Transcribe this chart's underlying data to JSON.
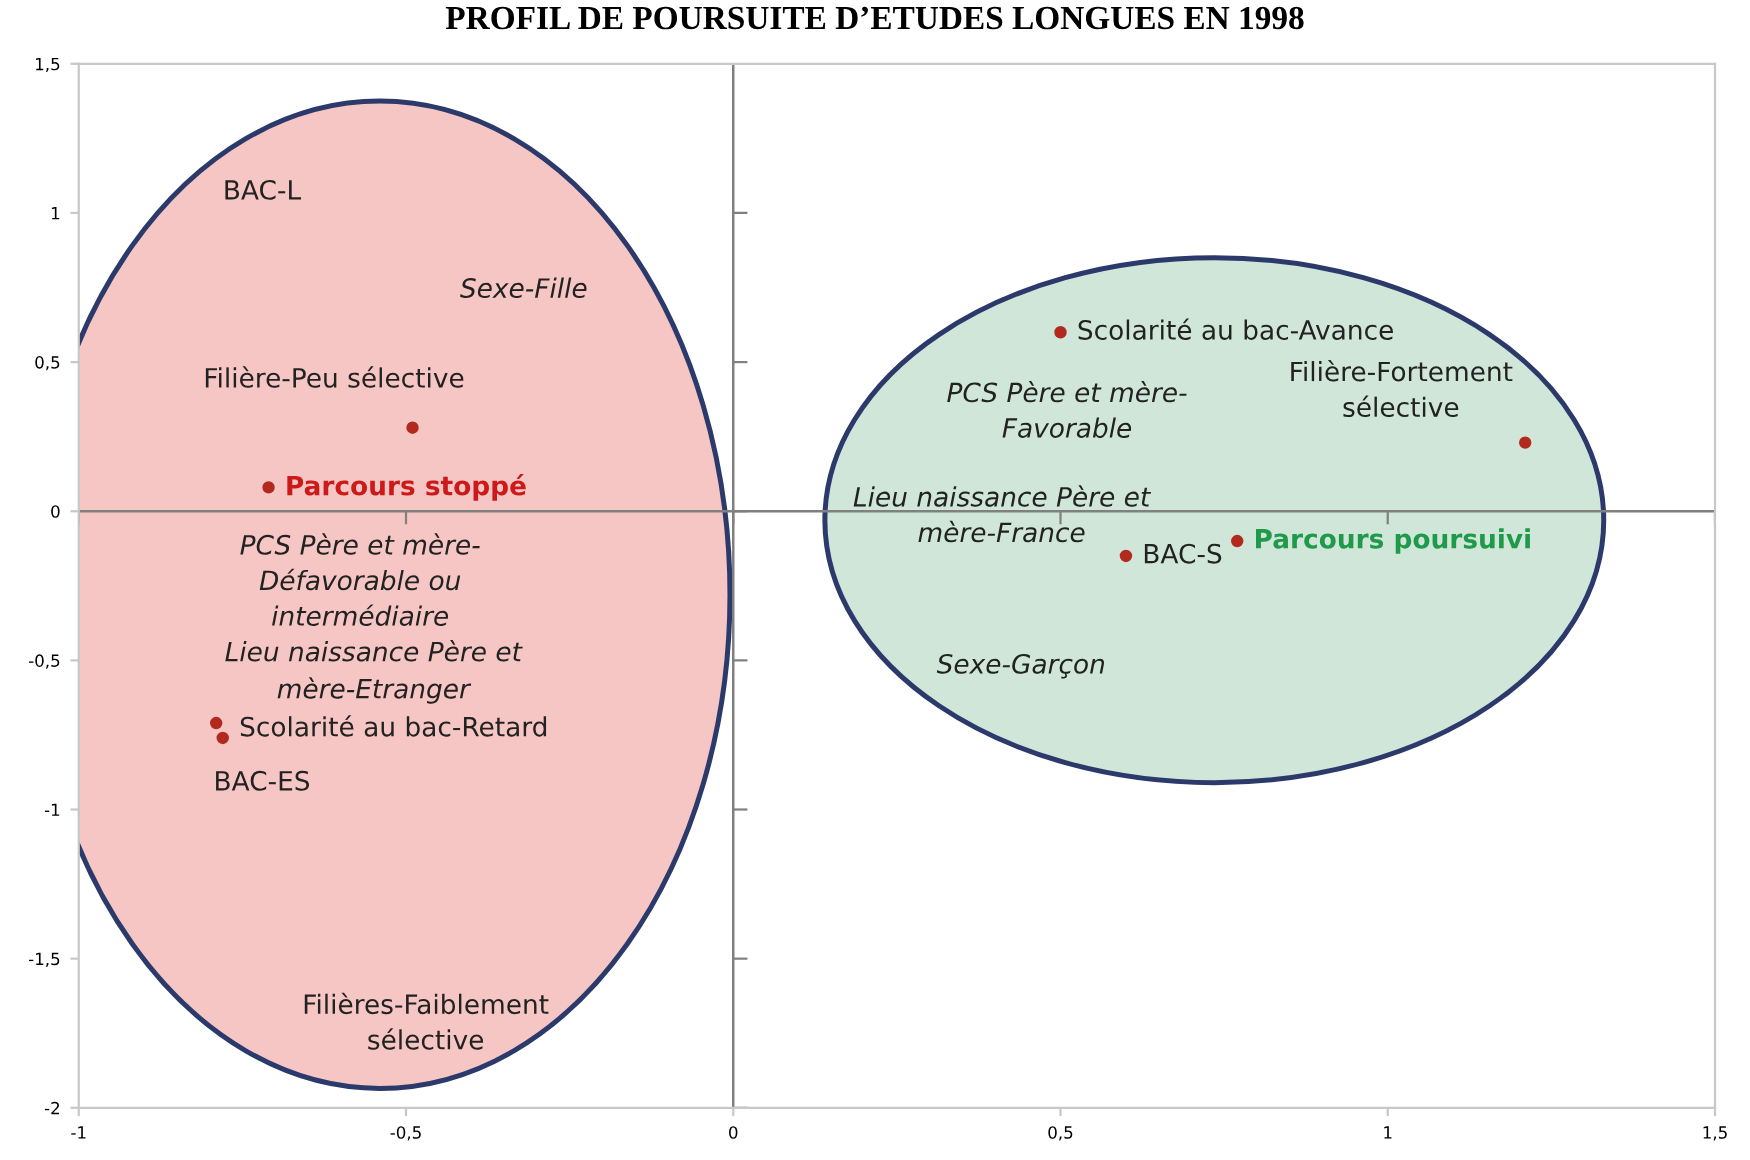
{
  "chart_data": {
    "type": "scatter",
    "title": "PROFIL DE POURSUITE D’ETUDES LONGUES EN 1998",
    "series": [
      {
        "color": "#b22a1e",
        "x": [
          -0.49,
          -0.71,
          -0.79,
          -0.78,
          0.5,
          1.21,
          0.6,
          0.77
        ],
        "values": [
          0.28,
          0.08,
          -0.71,
          -0.76,
          0.6,
          0.23,
          -0.15,
          -0.1
        ]
      }
    ],
    "marker": "circle",
    "xlim": [
      -1,
      1.5
    ],
    "ylim": [
      -2,
      1.5
    ],
    "xticks": [
      -1,
      {
        "value": -0.5,
        "label": "-0,5"
      },
      0,
      {
        "value": 0.5,
        "label": "0,5"
      },
      1,
      {
        "value": 1.5,
        "label": "1,5"
      }
    ],
    "yticks": [
      -2,
      {
        "value": -1.5,
        "label": "-1,5"
      },
      -1,
      {
        "value": -0.5,
        "label": "-0,5"
      },
      0,
      {
        "value": 0.5,
        "label": "0,5"
      },
      1,
      {
        "value": 1.5,
        "label": "1,5"
      }
    ],
    "ref_lines": [
      {
        "axis": "x",
        "value": 0,
        "color": "#808080"
      },
      {
        "axis": "y",
        "value": 0,
        "color": "#808080"
      }
    ],
    "grid": false,
    "annotations": [
      "BAC-L",
      "Sexe-Fille",
      "Filière-Peu sélective",
      {
        "text": "Parcours stoppé",
        "x": -0.71,
        "y": 0.08
      },
      "PCS Père et mère-\nDéfavorable ou\nintermédiaire",
      "Lieu naissance Père et\nmère-Etranger",
      {
        "text": "Scolarité au bac-Retard",
        "x": -0.78,
        "y": -0.73
      },
      "BAC-ES",
      "Filières-Faiblement\nsélective",
      {
        "text": "Scolarité au bac-Avance",
        "x": 0.5,
        "y": 0.6
      },
      "PCS Père et mère-\nFavorable",
      "Filière-Fortement\nsélective",
      "Lieu naissance Père et\nmère-France",
      {
        "text": "BAC-S",
        "x": 0.6,
        "y": -0.15
      },
      {
        "text": "Parcours poursuivi",
        "x": 0.77,
        "y": -0.1
      },
      "Sexe-Garçon"
    ]
  }
}
